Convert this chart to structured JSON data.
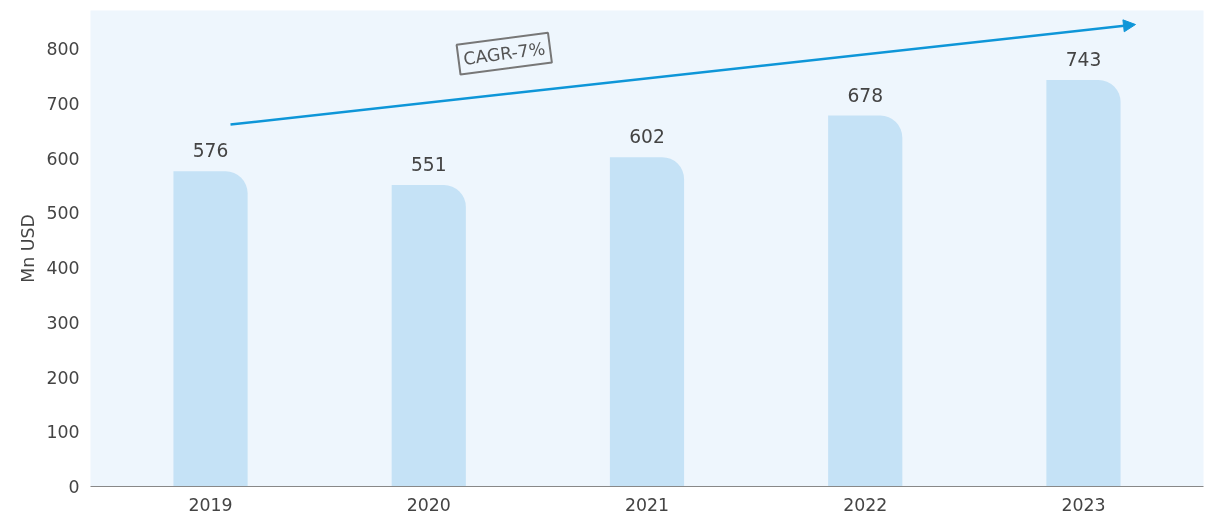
{
  "chart_data": {
    "type": "bar",
    "ylabel": "Mn USD",
    "categories": [
      "2019",
      "2020",
      "2021",
      "2022",
      "2023"
    ],
    "values": [
      576,
      551,
      602,
      678,
      743
    ],
    "color": "#c5e2f6",
    "ylim": [
      0,
      870
    ],
    "yticks": [
      0,
      100,
      200,
      300,
      400,
      500,
      600,
      700,
      800
    ],
    "data_labels": true,
    "grid": false,
    "annotations": [
      "CAGR-7%"
    ]
  }
}
